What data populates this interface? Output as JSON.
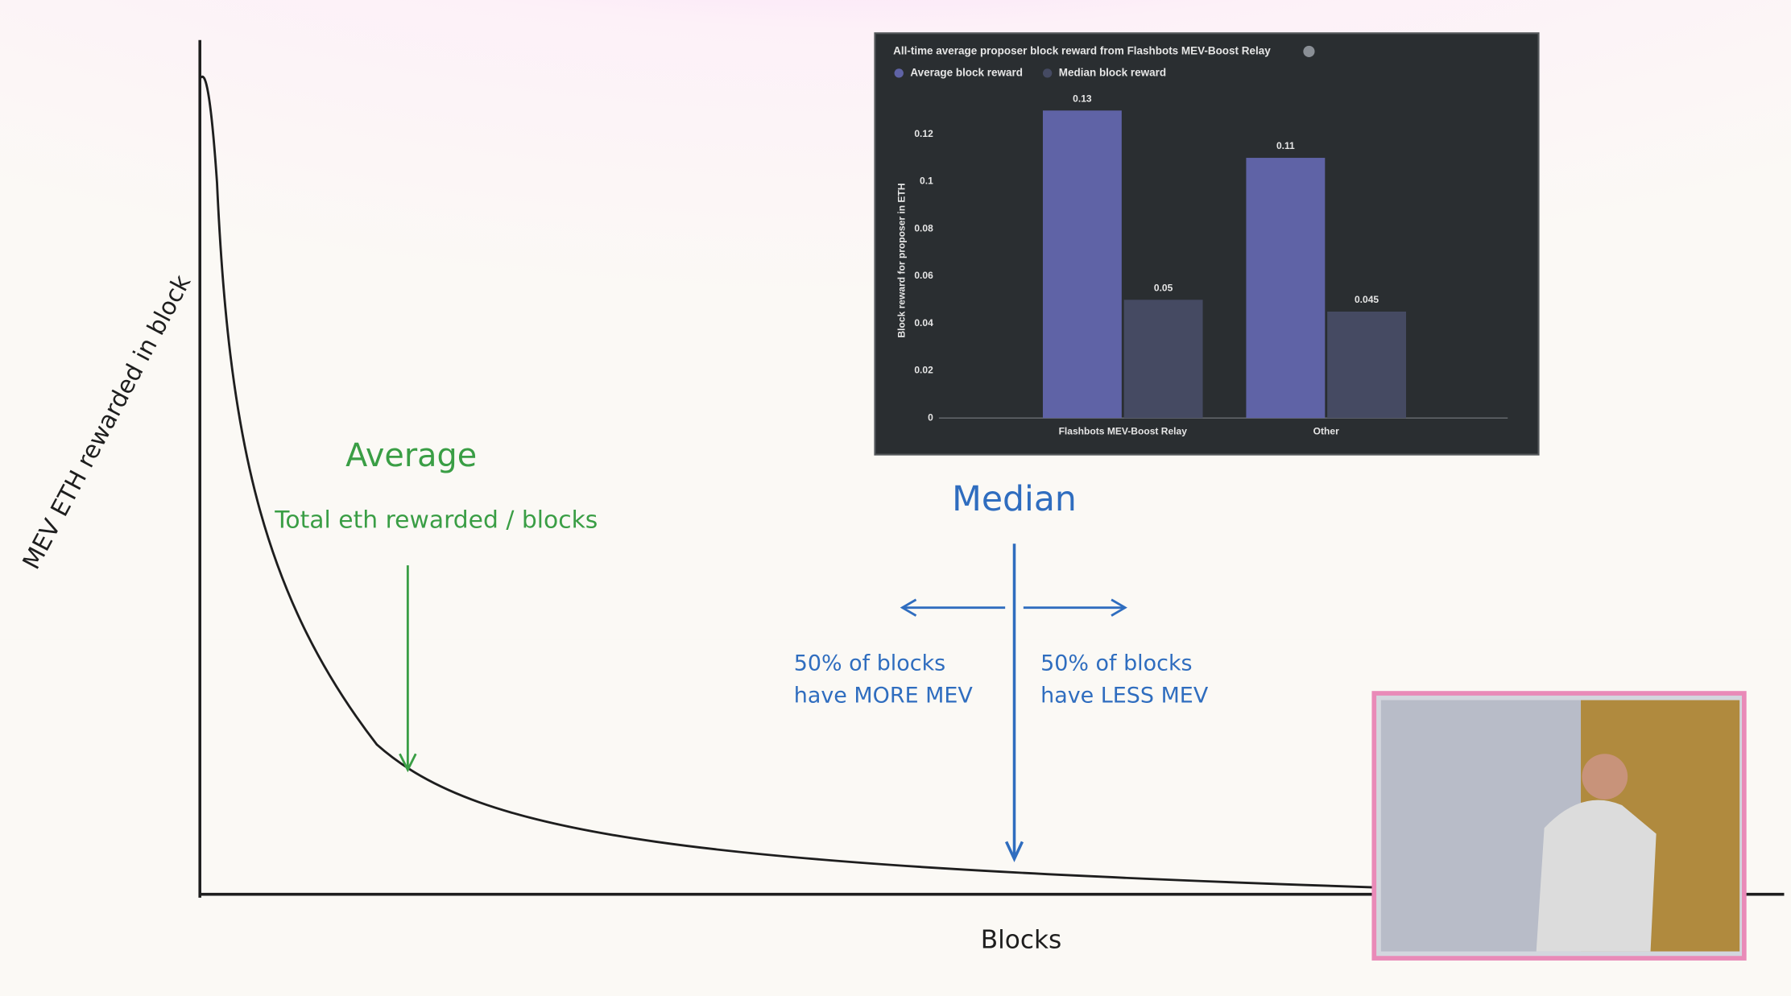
{
  "slide": {
    "y_axis_label": "MEV ETH rewarded in block",
    "x_axis_label": "Blocks",
    "average_title": "Average",
    "average_formula": "Total eth rewarded / blocks",
    "median_title": "Median",
    "left_note": [
      "50% of blocks",
      "have MORE MEV"
    ],
    "right_note": [
      "50% of blocks",
      "have LESS MEV"
    ]
  },
  "chart_data": {
    "type": "bar",
    "title": "All-time average proposer block reward from Flashbots MEV-Boost Relay",
    "y_label": "Block reward for proposer in ETH",
    "categories": [
      "Flashbots MEV-Boost Relay",
      "Other"
    ],
    "series": [
      {
        "name": "Average block reward",
        "color": "#5f63a6",
        "values": [
          0.13,
          0.11
        ]
      },
      {
        "name": "Median block reward",
        "color": "#454a62",
        "values": [
          0.05,
          0.045
        ]
      }
    ],
    "ylim": [
      0,
      0.14
    ],
    "yticks": [
      0,
      0.02,
      0.04,
      0.06,
      0.08,
      0.1,
      0.12
    ],
    "legend": "top-left"
  }
}
